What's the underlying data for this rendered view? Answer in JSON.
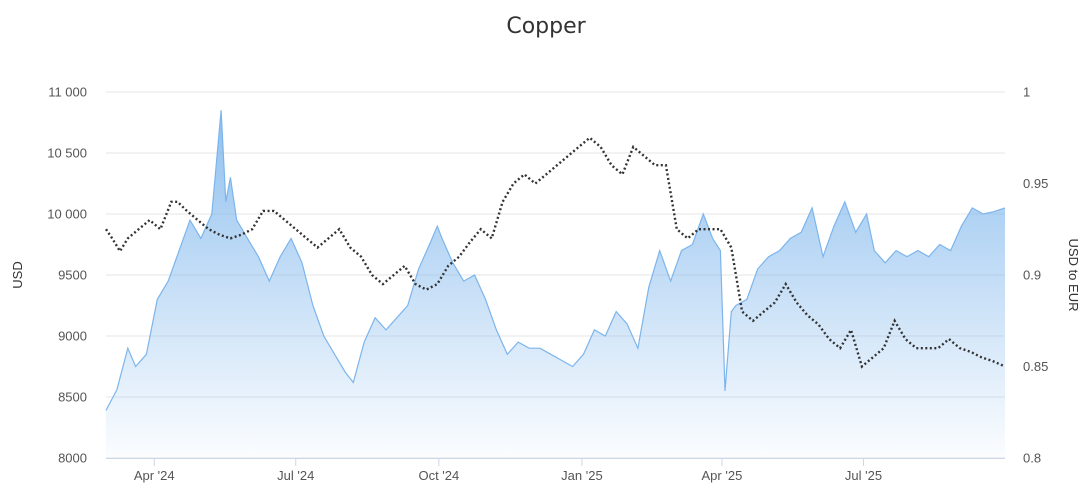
{
  "chart_data": {
    "type": "area",
    "title": "Copper",
    "xlabel": "",
    "ylabel": "USD",
    "y2label": "USD to EUR",
    "ylim": [
      8000,
      11000
    ],
    "y2lim": [
      0.8,
      1.0
    ],
    "yticks": [
      "8000",
      "8500",
      "9000",
      "9500",
      "10 000",
      "10 500",
      "11 000"
    ],
    "y2ticks": [
      "0.8",
      "0.85",
      "0.9",
      "0.95",
      "1"
    ],
    "xticks": [
      "Apr '24",
      "Jul '24",
      "Oct '24",
      "Jan '25",
      "Apr '25",
      "Jul '25"
    ],
    "xtick_dates": [
      "2024-04-01",
      "2024-07-01",
      "2024-10-01",
      "2025-01-01",
      "2025-04-01",
      "2025-07-01"
    ],
    "xlim": [
      "2024-03-01",
      "2025-09-30"
    ],
    "grid": true,
    "series": [
      {
        "axis": "left",
        "style": "area",
        "color": "#7cb5ec",
        "x": [
          "2024-03-01",
          "2024-03-08",
          "2024-03-15",
          "2024-03-20",
          "2024-03-27",
          "2024-04-03",
          "2024-04-10",
          "2024-04-17",
          "2024-04-24",
          "2024-05-01",
          "2024-05-08",
          "2024-05-14",
          "2024-05-17",
          "2024-05-20",
          "2024-05-24",
          "2024-05-31",
          "2024-06-07",
          "2024-06-14",
          "2024-06-21",
          "2024-06-28",
          "2024-07-05",
          "2024-07-12",
          "2024-07-19",
          "2024-07-26",
          "2024-08-02",
          "2024-08-07",
          "2024-08-14",
          "2024-08-21",
          "2024-08-28",
          "2024-09-04",
          "2024-09-11",
          "2024-09-18",
          "2024-09-25",
          "2024-09-30",
          "2024-10-03",
          "2024-10-10",
          "2024-10-17",
          "2024-10-24",
          "2024-10-31",
          "2024-11-07",
          "2024-11-14",
          "2024-11-21",
          "2024-11-28",
          "2024-12-05",
          "2024-12-12",
          "2024-12-19",
          "2024-12-26",
          "2025-01-02",
          "2025-01-09",
          "2025-01-16",
          "2025-01-23",
          "2025-01-30",
          "2025-02-06",
          "2025-02-13",
          "2025-02-20",
          "2025-02-27",
          "2025-03-06",
          "2025-03-13",
          "2025-03-20",
          "2025-03-26",
          "2025-03-31",
          "2025-04-03",
          "2025-04-07",
          "2025-04-10",
          "2025-04-17",
          "2025-04-24",
          "2025-05-01",
          "2025-05-08",
          "2025-05-15",
          "2025-05-22",
          "2025-05-29",
          "2025-06-05",
          "2025-06-12",
          "2025-06-19",
          "2025-06-26",
          "2025-07-03",
          "2025-07-08",
          "2025-07-15",
          "2025-07-22",
          "2025-07-29",
          "2025-08-05",
          "2025-08-12",
          "2025-08-19",
          "2025-08-26",
          "2025-09-02",
          "2025-09-09",
          "2025-09-16",
          "2025-09-23",
          "2025-09-30"
        ],
        "values": [
          8390,
          8560,
          8900,
          8750,
          8850,
          9300,
          9450,
          9700,
          9950,
          9800,
          10000,
          10850,
          10100,
          10300,
          9950,
          9800,
          9650,
          9450,
          9650,
          9800,
          9600,
          9250,
          9000,
          8850,
          8700,
          8620,
          8950,
          9150,
          9050,
          9150,
          9250,
          9550,
          9750,
          9900,
          9800,
          9600,
          9450,
          9500,
          9300,
          9050,
          8850,
          8950,
          8900,
          8900,
          8850,
          8800,
          8750,
          8850,
          9050,
          9000,
          9200,
          9100,
          8900,
          9400,
          9700,
          9450,
          9700,
          9750,
          10000,
          9800,
          9700,
          8550,
          9200,
          9250,
          9300,
          9550,
          9650,
          9700,
          9800,
          9850,
          10050,
          9650,
          9900,
          10100,
          9850,
          10000,
          9700,
          9600,
          9700,
          9650,
          9700,
          9650,
          9750,
          9700,
          9900,
          10050,
          10000,
          10020,
          10050
        ]
      },
      {
        "axis": "right",
        "style": "dotted-line",
        "color": "#333333",
        "x": [
          "2024-03-01",
          "2024-03-05",
          "2024-03-10",
          "2024-03-15",
          "2024-03-22",
          "2024-03-29",
          "2024-04-05",
          "2024-04-12",
          "2024-04-16",
          "2024-04-22",
          "2024-04-29",
          "2024-05-06",
          "2024-05-13",
          "2024-05-20",
          "2024-05-27",
          "2024-06-03",
          "2024-06-10",
          "2024-06-17",
          "2024-06-24",
          "2024-07-01",
          "2024-07-08",
          "2024-07-15",
          "2024-07-22",
          "2024-07-29",
          "2024-08-05",
          "2024-08-12",
          "2024-08-19",
          "2024-08-26",
          "2024-09-02",
          "2024-09-09",
          "2024-09-16",
          "2024-09-23",
          "2024-09-30",
          "2024-10-07",
          "2024-10-14",
          "2024-10-21",
          "2024-10-28",
          "2024-11-04",
          "2024-11-11",
          "2024-11-18",
          "2024-11-25",
          "2024-12-02",
          "2024-12-09",
          "2024-12-16",
          "2024-12-23",
          "2024-12-30",
          "2025-01-06",
          "2025-01-13",
          "2025-01-20",
          "2025-01-27",
          "2025-02-03",
          "2025-02-10",
          "2025-02-17",
          "2025-02-24",
          "2025-03-03",
          "2025-03-10",
          "2025-03-17",
          "2025-03-24",
          "2025-03-31",
          "2025-04-07",
          "2025-04-14",
          "2025-04-21",
          "2025-04-28",
          "2025-05-05",
          "2025-05-12",
          "2025-05-19",
          "2025-05-26",
          "2025-06-02",
          "2025-06-09",
          "2025-06-16",
          "2025-06-23",
          "2025-06-30",
          "2025-07-07",
          "2025-07-14",
          "2025-07-21",
          "2025-07-28",
          "2025-08-04",
          "2025-08-11",
          "2025-08-18",
          "2025-08-25",
          "2025-09-01",
          "2025-09-08",
          "2025-09-15",
          "2025-09-22",
          "2025-09-30"
        ],
        "values": [
          0.925,
          0.92,
          0.913,
          0.92,
          0.925,
          0.93,
          0.925,
          0.94,
          0.94,
          0.935,
          0.93,
          0.925,
          0.922,
          0.92,
          0.922,
          0.925,
          0.935,
          0.935,
          0.93,
          0.925,
          0.92,
          0.915,
          0.92,
          0.925,
          0.915,
          0.91,
          0.9,
          0.895,
          0.9,
          0.905,
          0.895,
          0.892,
          0.895,
          0.905,
          0.91,
          0.918,
          0.925,
          0.92,
          0.94,
          0.95,
          0.955,
          0.95,
          0.955,
          0.96,
          0.965,
          0.97,
          0.975,
          0.97,
          0.96,
          0.955,
          0.97,
          0.965,
          0.96,
          0.96,
          0.925,
          0.92,
          0.925,
          0.925,
          0.925,
          0.915,
          0.88,
          0.875,
          0.88,
          0.885,
          0.895,
          0.885,
          0.878,
          0.873,
          0.865,
          0.86,
          0.87,
          0.85,
          0.855,
          0.86,
          0.875,
          0.865,
          0.86,
          0.86,
          0.86,
          0.865,
          0.86,
          0.858,
          0.855,
          0.853,
          0.85
        ]
      }
    ]
  }
}
